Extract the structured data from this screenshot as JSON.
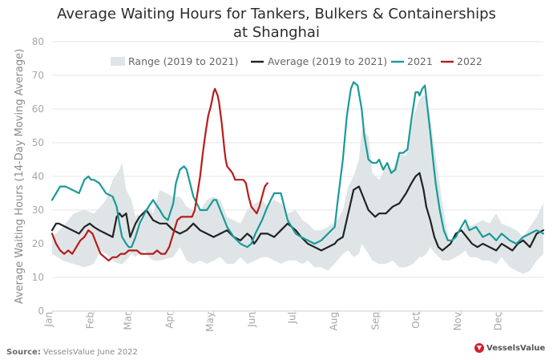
{
  "chart_data": {
    "type": "line",
    "title": [
      "Average Waiting Hours for Tankers, Bulkers & Containerships",
      "at Shanghai"
    ],
    "ylabel": "Average Waiting Hours (14-Day Moving Average)",
    "xlabel": "",
    "ylim": [
      0,
      80
    ],
    "yticks": [
      0,
      10,
      20,
      30,
      40,
      50,
      60,
      70,
      80
    ],
    "xlim": [
      0,
      365
    ],
    "month_ticks": [
      {
        "label": "Jan",
        "day": 0
      },
      {
        "label": "Feb",
        "day": 31
      },
      {
        "label": "Mar",
        "day": 59
      },
      {
        "label": "Apr",
        "day": 90
      },
      {
        "label": "May",
        "day": 120
      },
      {
        "label": "Jun",
        "day": 151
      },
      {
        "label": "Jul",
        "day": 181
      },
      {
        "label": "Aug",
        "day": 212
      },
      {
        "label": "Sep",
        "day": 243
      },
      {
        "label": "Oct",
        "day": 273
      },
      {
        "label": "Nov",
        "day": 304
      },
      {
        "label": "Dec",
        "day": 334
      }
    ],
    "grid": "horizontal",
    "legend": [
      "Range (2019 to 2021)",
      "Average (2019 to 2021)",
      "2021",
      "2022"
    ],
    "series": [
      {
        "name": "Range (2019 to 2021)",
        "kind": "band",
        "color": "#dfe5e7",
        "x": [
          0,
          8,
          16,
          24,
          31,
          36,
          40,
          45,
          50,
          52,
          55,
          59,
          62,
          64,
          66,
          69,
          72,
          75,
          80,
          90,
          95,
          100,
          105,
          110,
          115,
          120,
          125,
          130,
          135,
          140,
          145,
          151,
          156,
          160,
          165,
          170,
          175,
          181,
          186,
          190,
          195,
          200,
          205,
          212,
          216,
          220,
          224,
          228,
          230,
          235,
          238,
          243,
          248,
          253,
          258,
          263,
          268,
          273,
          275,
          278,
          281,
          285,
          290,
          295,
          300,
          304,
          307,
          310,
          315,
          320,
          325,
          330,
          334,
          340,
          345,
          350,
          355,
          360,
          365
        ],
        "low": [
          17,
          15,
          14,
          13,
          14,
          18,
          17,
          15,
          14,
          14,
          15,
          17,
          16,
          17,
          17,
          18,
          16,
          15,
          15,
          16,
          19,
          15,
          14,
          15,
          14,
          15,
          16,
          14,
          14,
          16,
          14,
          15,
          16,
          16,
          15,
          14,
          15,
          15,
          14,
          15,
          13,
          13,
          12,
          15,
          17,
          18,
          16,
          17,
          20,
          17,
          15,
          14,
          14,
          15,
          13,
          13,
          14,
          16,
          16,
          17,
          19,
          17,
          15,
          15,
          16,
          17,
          18,
          16,
          16,
          15,
          15,
          14,
          16,
          13,
          12,
          11,
          12,
          15,
          17
        ],
        "high": [
          22,
          25,
          29,
          30,
          29,
          31,
          33,
          39,
          42,
          44,
          36,
          33,
          28,
          29,
          26,
          30,
          31,
          29,
          36,
          34,
          34,
          31,
          30,
          30,
          33,
          34,
          33,
          28,
          27,
          26,
          30,
          32,
          33,
          31,
          33,
          32,
          29,
          30,
          27,
          26,
          24,
          24,
          25,
          27,
          30,
          37,
          40,
          45,
          54,
          52,
          41,
          39,
          43,
          42,
          47,
          46,
          57,
          63,
          64,
          64,
          57,
          46,
          32,
          21,
          22,
          23,
          26,
          25,
          26,
          27,
          26,
          29,
          26,
          25,
          24,
          22,
          25,
          28,
          32
        ]
      },
      {
        "name": "Average (2019 to 2021)",
        "kind": "line",
        "color": "#222222",
        "x": [
          0,
          3,
          5,
          10,
          15,
          20,
          24,
          28,
          31,
          35,
          40,
          45,
          48,
          50,
          52,
          55,
          58,
          62,
          65,
          70,
          75,
          80,
          85,
          90,
          95,
          100,
          105,
          110,
          115,
          120,
          125,
          130,
          135,
          140,
          145,
          148,
          150,
          152,
          155,
          160,
          165,
          170,
          175,
          181,
          185,
          190,
          195,
          200,
          205,
          210,
          212,
          216,
          220,
          224,
          228,
          230,
          235,
          240,
          243,
          248,
          253,
          258,
          263,
          267,
          270,
          273,
          276,
          278,
          281,
          284,
          287,
          290,
          293,
          296,
          300,
          304,
          308,
          312,
          316,
          320,
          325,
          330,
          334,
          338,
          342,
          346,
          350,
          355,
          360,
          365
        ],
        "y": [
          24,
          26,
          26,
          25,
          24,
          23,
          25,
          26,
          25,
          24,
          23,
          22,
          28,
          29,
          28,
          29,
          22,
          26,
          28,
          30,
          27,
          26,
          26,
          24,
          23,
          24,
          26,
          24,
          23,
          22,
          23,
          24,
          22,
          21,
          23,
          22,
          20,
          21,
          23,
          23,
          22,
          24,
          26,
          24,
          22,
          20,
          19,
          18,
          19,
          20,
          21,
          22,
          29,
          36,
          37,
          35,
          30,
          28,
          29,
          29,
          31,
          32,
          35,
          38,
          40,
          41,
          36,
          31,
          27,
          22,
          19,
          18,
          19,
          20,
          23,
          24,
          22,
          20,
          19,
          20,
          19,
          18,
          20,
          19,
          18,
          20,
          21,
          19,
          23,
          24
        ]
      },
      {
        "name": "2021",
        "kind": "line",
        "color": "#1a9a98",
        "x": [
          0,
          3,
          6,
          10,
          15,
          20,
          24,
          27,
          29,
          31,
          35,
          40,
          45,
          48,
          50,
          52,
          55,
          57,
          59,
          62,
          65,
          70,
          75,
          80,
          83,
          86,
          90,
          92,
          95,
          98,
          100,
          105,
          110,
          115,
          120,
          122,
          125,
          128,
          130,
          135,
          140,
          145,
          148,
          151,
          156,
          160,
          165,
          170,
          175,
          181,
          185,
          190,
          195,
          200,
          205,
          210,
          212,
          216,
          219,
          222,
          224,
          227,
          230,
          232,
          235,
          238,
          241,
          243,
          246,
          249,
          252,
          255,
          258,
          261,
          264,
          267,
          270,
          272,
          273,
          275,
          277,
          279,
          281,
          283,
          285,
          288,
          291,
          294,
          297,
          300,
          304,
          307,
          310,
          315,
          320,
          325,
          330,
          334,
          340,
          345,
          350,
          355,
          360,
          365
        ],
        "y": [
          33,
          35,
          37,
          37,
          36,
          35,
          39,
          40,
          39,
          39,
          38,
          35,
          34,
          31,
          26,
          22,
          20,
          19,
          19,
          22,
          26,
          30,
          33,
          30,
          28,
          27,
          32,
          38,
          42,
          43,
          42,
          34,
          30,
          30,
          33,
          33,
          30,
          27,
          25,
          22,
          20,
          19,
          20,
          23,
          27,
          31,
          35,
          35,
          27,
          23,
          22,
          21,
          20,
          21,
          23,
          25,
          32,
          45,
          58,
          66,
          68,
          67,
          60,
          52,
          45,
          44,
          44,
          45,
          42,
          44,
          41,
          42,
          47,
          47,
          48,
          57,
          65,
          65,
          64,
          66,
          67,
          60,
          53,
          45,
          38,
          30,
          24,
          21,
          21,
          22,
          25,
          27,
          24,
          25,
          22,
          23,
          21,
          23,
          21,
          20,
          22,
          23,
          24,
          23
        ]
      },
      {
        "name": "2022",
        "kind": "line",
        "color": "#b81c1c",
        "x": [
          0,
          3,
          6,
          9,
          12,
          15,
          18,
          21,
          24,
          27,
          30,
          33,
          36,
          39,
          42,
          45,
          48,
          51,
          54,
          57,
          60,
          63,
          66,
          69,
          72,
          75,
          78,
          81,
          84,
          87,
          90,
          93,
          96,
          99,
          102,
          104,
          106,
          108,
          110,
          112,
          114,
          116,
          118,
          119,
          120,
          121,
          122,
          123,
          124,
          125,
          126,
          127,
          128,
          129,
          130,
          132,
          134,
          136,
          138,
          140,
          142,
          144,
          146,
          148,
          150,
          152,
          154,
          156,
          158,
          160
        ],
        "y": [
          23,
          20,
          18,
          17,
          18,
          17,
          19,
          21,
          22,
          24,
          23,
          20,
          17,
          16,
          15,
          16,
          16,
          17,
          17,
          18,
          18,
          18,
          17,
          17,
          17,
          17,
          18,
          17,
          17,
          19,
          23,
          27,
          28,
          28,
          28,
          28,
          30,
          35,
          40,
          47,
          53,
          58,
          61,
          63,
          65,
          66,
          65,
          64,
          62,
          59,
          56,
          52,
          48,
          45,
          43,
          42,
          41,
          39,
          39,
          39,
          39,
          38,
          34,
          31,
          30,
          29,
          31,
          34,
          37,
          38
        ]
      }
    ]
  },
  "source": {
    "label": "Source:",
    "text": "VesselsValue June 2022"
  },
  "logo": {
    "text": "VesselsValue",
    "icon": "vesselsvalue-logo-icon"
  },
  "colors": {
    "band": "#dfe5e7",
    "average": "#222222",
    "y2021": "#1a9a98",
    "y2022": "#b81c1c",
    "grid": "#e6e6e6"
  }
}
